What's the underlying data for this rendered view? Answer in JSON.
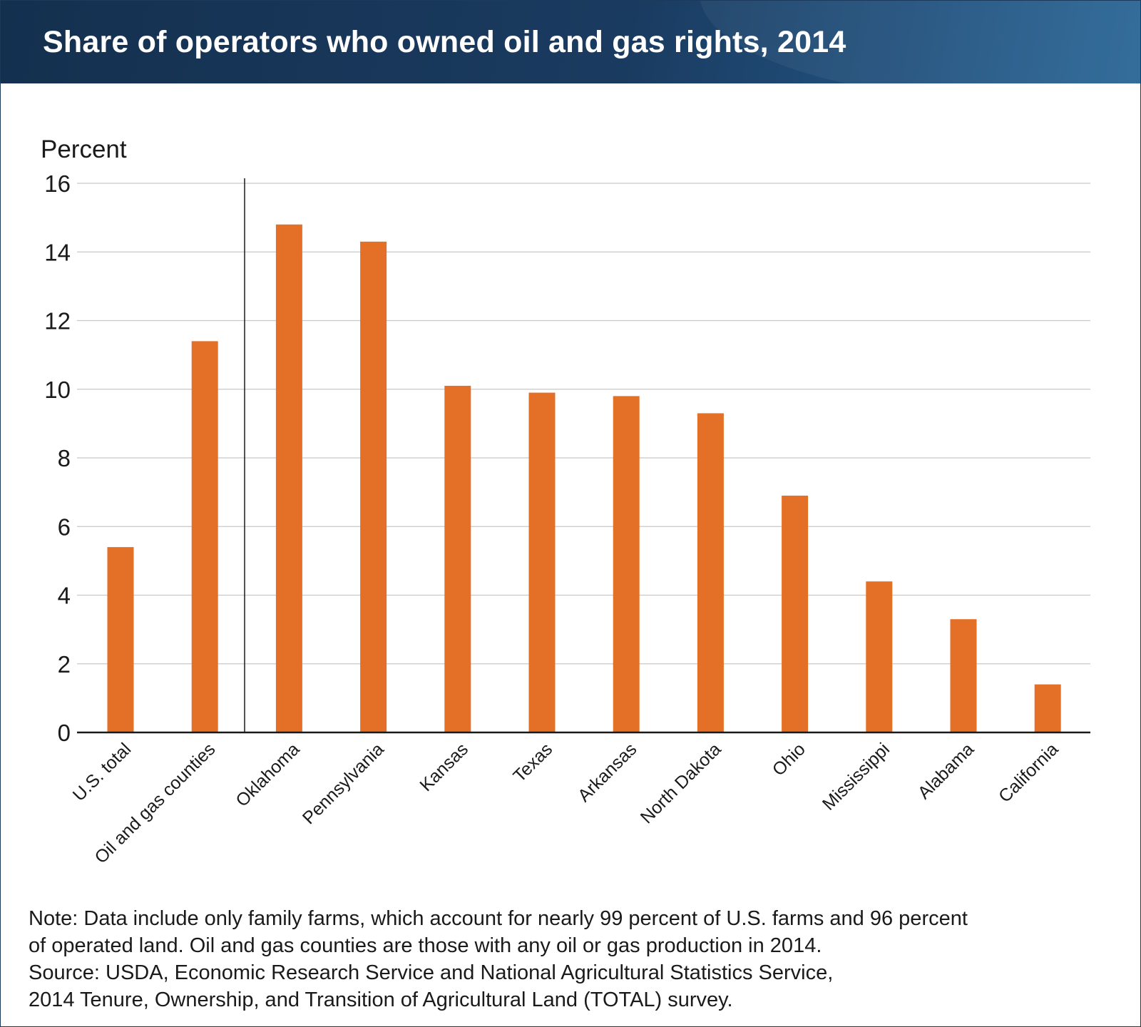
{
  "header": {
    "title": "Share of operators who owned oil and gas rights, 2014"
  },
  "chart_data": {
    "type": "bar",
    "title": "Share of operators who owned oil and gas rights, 2014",
    "ylabel": "Percent",
    "xlabel": "",
    "ylim": [
      0,
      16
    ],
    "yticks": [
      0,
      2,
      4,
      6,
      8,
      10,
      12,
      14,
      16
    ],
    "grid": "horizontal",
    "categories": [
      "U.S. total",
      "Oil and gas counties",
      "Oklahoma",
      "Pennsylvania",
      "Kansas",
      "Texas",
      "Arkansas",
      "North Dakota",
      "Ohio",
      "Mississippi",
      "Alabama",
      "California"
    ],
    "values": [
      5.4,
      11.4,
      14.8,
      14.3,
      10.1,
      9.9,
      9.8,
      9.3,
      6.9,
      4.4,
      3.3,
      1.4
    ],
    "bar_color": "#e46f26"
  },
  "notes": {
    "line1": "Note: Data include only family farms, which account for nearly 99 percent of U.S. farms and 96 percent",
    "line2": "of operated land. Oil and gas counties are those with any oil or gas production in 2014.",
    "line3": "Source: USDA, Economic Research Service and National Agricultural Statistics Service,",
    "line4": "2014 Tenure, Ownership, and Transition of Agricultural Land (TOTAL) survey."
  }
}
